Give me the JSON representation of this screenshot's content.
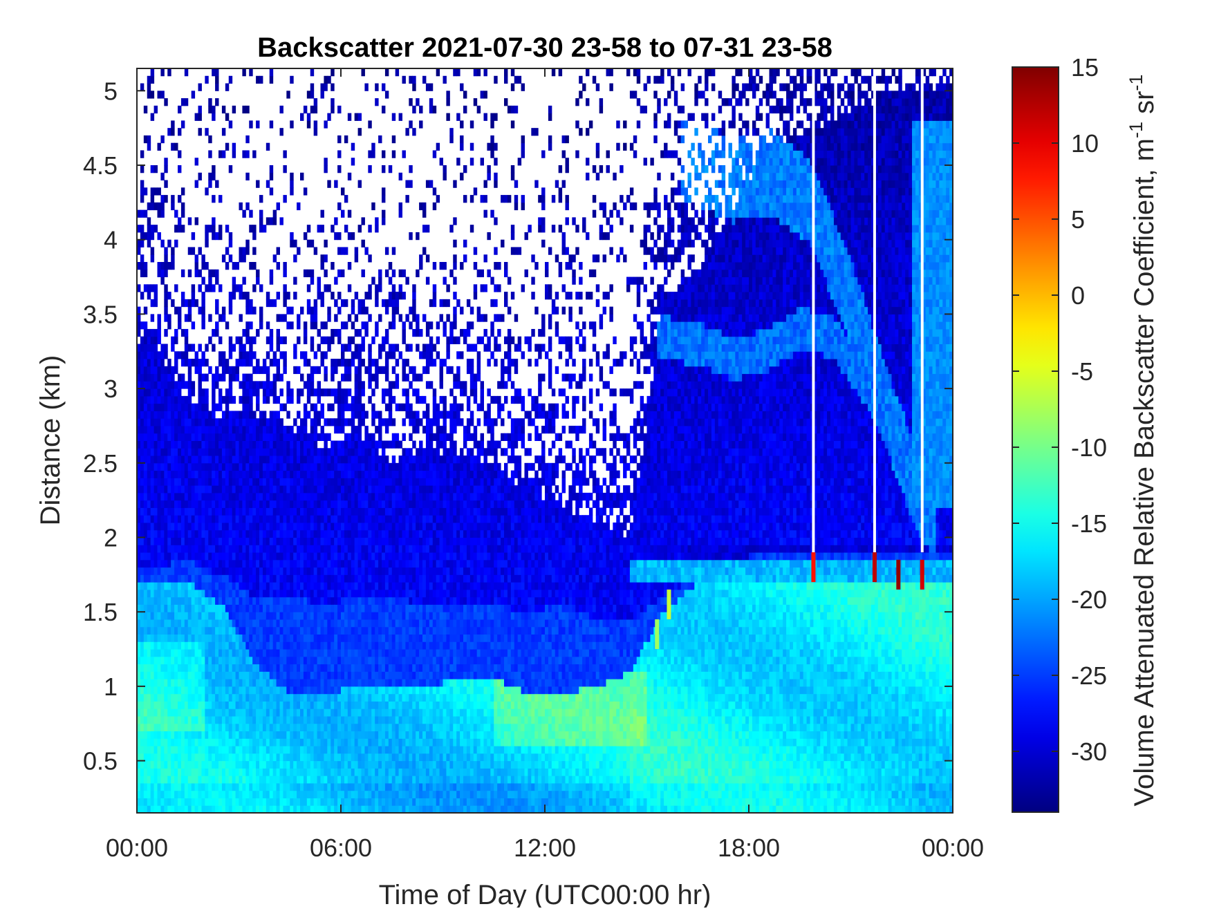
{
  "chart_data": {
    "type": "heatmap",
    "title": "Backscatter 2021-07-30 23-58 to 07-31 23-58",
    "xlabel": "Time of Day (UTC00:00 hr)",
    "ylabel": "Distance (km)",
    "colorbar_label": "Volume Attenuated Relative Backscatter Coefficient, m",
    "colorbar_unit_sup1": "-1",
    "colorbar_unit_mid": " sr",
    "colorbar_unit_sup2": "-1",
    "colormap": "jet",
    "color_range": [
      -34,
      15
    ],
    "x_range_hours": [
      0,
      24
    ],
    "y_range_km": [
      0.15,
      5.15
    ],
    "grid": false,
    "x_ticks": [
      {
        "value": 0,
        "label": "00:00"
      },
      {
        "value": 6,
        "label": "06:00"
      },
      {
        "value": 12,
        "label": "12:00"
      },
      {
        "value": 18,
        "label": "18:00"
      },
      {
        "value": 24,
        "label": "00:00"
      }
    ],
    "y_ticks": [
      {
        "value": 0.5,
        "label": "0.5"
      },
      {
        "value": 1,
        "label": "1"
      },
      {
        "value": 1.5,
        "label": "1.5"
      },
      {
        "value": 2,
        "label": "2"
      },
      {
        "value": 2.5,
        "label": "2.5"
      },
      {
        "value": 3,
        "label": "3"
      },
      {
        "value": 3.5,
        "label": "3.5"
      },
      {
        "value": 4,
        "label": "4"
      },
      {
        "value": 4.5,
        "label": "4.5"
      },
      {
        "value": 5,
        "label": "5"
      }
    ],
    "colorbar_ticks": [
      {
        "value": 15,
        "label": "15"
      },
      {
        "value": 10,
        "label": "10"
      },
      {
        "value": 5,
        "label": "5"
      },
      {
        "value": 0,
        "label": "0"
      },
      {
        "value": -5,
        "label": "-5"
      },
      {
        "value": -10,
        "label": "-10"
      },
      {
        "value": -15,
        "label": "-15"
      },
      {
        "value": -20,
        "label": "-20"
      },
      {
        "value": -25,
        "label": "-25"
      },
      {
        "value": -30,
        "label": "-30"
      }
    ],
    "hour_columns": [
      0.5,
      1.5,
      2.5,
      3.5,
      4.5,
      5.5,
      6.5,
      7.5,
      8.5,
      9.5,
      10.5,
      11.5,
      12.5,
      13.5,
      14.5,
      15.5,
      16.5,
      17.5,
      18.5,
      19.5,
      20.5,
      21.5,
      22.5,
      23.5
    ],
    "cloud_base_km": [
      1.65,
      1.7,
      1.6,
      1.45,
      1.45,
      1.4,
      1.45,
      1.45,
      1.4,
      1.4,
      1.4,
      1.35,
      1.4,
      1.3,
      1.3,
      1.45,
      1.6,
      1.7,
      1.75,
      1.75,
      1.75,
      1.75,
      1.75,
      1.75
    ],
    "boundary_layer_top_km": [
      1.7,
      1.7,
      1.55,
      1.15,
      0.95,
      0.95,
      1.0,
      1.0,
      1.0,
      1.05,
      1.05,
      0.95,
      0.95,
      1.0,
      1.1,
      1.5,
      1.7,
      1.7,
      1.75,
      1.75,
      1.75,
      1.75,
      1.75,
      1.75
    ],
    "noise_floor_km": [
      3.3,
      2.9,
      2.8,
      2.8,
      2.7,
      2.6,
      2.7,
      2.5,
      2.6,
      2.5,
      2.5,
      2.3,
      2.2,
      2.1,
      2.0,
      3.6,
      3.8,
      4.2,
      4.6,
      4.7,
      4.8,
      4.9,
      5.0,
      5.0
    ],
    "elevated_aerosol_layer_km": [
      {
        "x": 16.0,
        "y": 4.55
      },
      {
        "x": 17.5,
        "y": 4.4
      },
      {
        "x": 18.7,
        "y": 4.45
      },
      {
        "x": 19.8,
        "y": 4.25
      },
      {
        "x": 21.0,
        "y": 3.6
      },
      {
        "x": 22.0,
        "y": 2.9
      },
      {
        "x": 22.8,
        "y": 2.4
      },
      {
        "x": 23.5,
        "y": 2.1
      }
    ],
    "secondary_layer_km": [
      {
        "x": 15.3,
        "y": 3.35
      },
      {
        "x": 16.5,
        "y": 3.3
      },
      {
        "x": 17.5,
        "y": 3.2
      },
      {
        "x": 18.5,
        "y": 3.25
      },
      {
        "x": 19.5,
        "y": 3.4
      },
      {
        "x": 20.5,
        "y": 3.35
      },
      {
        "x": 21.5,
        "y": 3.0
      },
      {
        "x": 22.5,
        "y": 2.5
      }
    ],
    "missing_profiles_hours": [
      19.9,
      21.7,
      23.1
    ],
    "hot_spots": [
      {
        "x": 19.9,
        "y": 1.8,
        "value": 8
      },
      {
        "x": 21.7,
        "y": 1.8,
        "value": 12
      },
      {
        "x": 22.4,
        "y": 1.75,
        "value": 14
      },
      {
        "x": 23.1,
        "y": 1.75,
        "value": 11
      },
      {
        "x": 15.65,
        "y": 1.55,
        "value": -6
      },
      {
        "x": 15.3,
        "y": 1.35,
        "value": -8
      }
    ]
  }
}
